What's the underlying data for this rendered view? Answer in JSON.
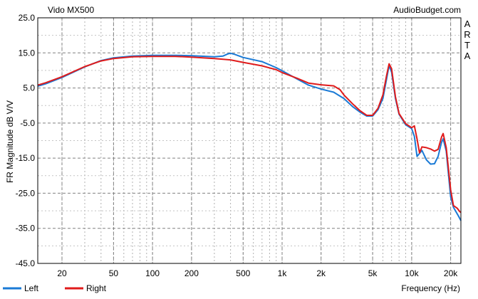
{
  "chart_data": {
    "type": "line",
    "title": "Vido MX500",
    "source_label": "AudioBudget.com",
    "side_label": "ARTA",
    "xlabel": "Frequency (Hz)",
    "ylabel": "FR Magnitude dB V/V",
    "x_scale": "log",
    "xlim": [
      13,
      24000
    ],
    "ylim": [
      -45,
      25
    ],
    "grid": true,
    "legend_position": "bottom-left",
    "y_ticks": [
      {
        "value": 25,
        "label": "25.0"
      },
      {
        "value": 15,
        "label": "15.0"
      },
      {
        "value": 5,
        "label": "5.0"
      },
      {
        "value": -5,
        "label": "-5.0"
      },
      {
        "value": -15,
        "label": "-15.0"
      },
      {
        "value": -25,
        "label": "-25.0"
      },
      {
        "value": -35,
        "label": "-35.0"
      },
      {
        "value": -45,
        "label": "-45.0"
      }
    ],
    "x_ticks": [
      {
        "value": 20,
        "label": "20"
      },
      {
        "value": 50,
        "label": "50"
      },
      {
        "value": 100,
        "label": "100"
      },
      {
        "value": 200,
        "label": "200"
      },
      {
        "value": 500,
        "label": "500"
      },
      {
        "value": 1000,
        "label": "1k"
      },
      {
        "value": 2000,
        "label": "2k"
      },
      {
        "value": 5000,
        "label": "5k"
      },
      {
        "value": 10000,
        "label": "10k"
      },
      {
        "value": 20000,
        "label": "20k"
      }
    ],
    "series": [
      {
        "name": "Left",
        "color": "#1a7ad6",
        "points": [
          [
            13,
            5.5
          ],
          [
            15,
            6.2
          ],
          [
            20,
            8.0
          ],
          [
            30,
            11.0
          ],
          [
            40,
            12.8
          ],
          [
            50,
            13.6
          ],
          [
            70,
            14.1
          ],
          [
            100,
            14.3
          ],
          [
            150,
            14.3
          ],
          [
            200,
            14.2
          ],
          [
            300,
            13.9
          ],
          [
            350,
            14.1
          ],
          [
            380,
            14.7
          ],
          [
            400,
            14.9
          ],
          [
            430,
            14.6
          ],
          [
            500,
            13.7
          ],
          [
            700,
            12.5
          ],
          [
            900,
            10.8
          ],
          [
            1000,
            9.9
          ],
          [
            1300,
            7.6
          ],
          [
            1600,
            5.8
          ],
          [
            2000,
            4.7
          ],
          [
            2500,
            3.8
          ],
          [
            3000,
            2.0
          ],
          [
            3500,
            -0.3
          ],
          [
            4000,
            -1.9
          ],
          [
            4500,
            -3.0
          ],
          [
            5000,
            -3.0
          ],
          [
            5500,
            -1.2
          ],
          [
            6000,
            2.0
          ],
          [
            6400,
            7.5
          ],
          [
            6700,
            11.4
          ],
          [
            7000,
            9.5
          ],
          [
            7500,
            2.0
          ],
          [
            8000,
            -2.5
          ],
          [
            9000,
            -5.5
          ],
          [
            10000,
            -6.6
          ],
          [
            10500,
            -8.8
          ],
          [
            11000,
            -14.5
          ],
          [
            12000,
            -12.8
          ],
          [
            13000,
            -15.5
          ],
          [
            14000,
            -16.7
          ],
          [
            15000,
            -16.6
          ],
          [
            16000,
            -14.5
          ],
          [
            17000,
            -10.5
          ],
          [
            17500,
            -9.5
          ],
          [
            18500,
            -13.0
          ],
          [
            20000,
            -26.0
          ],
          [
            21000,
            -29.0
          ],
          [
            23000,
            -31.5
          ],
          [
            24000,
            -32.8
          ]
        ]
      },
      {
        "name": "Right",
        "color": "#e01b1b",
        "points": [
          [
            13,
            5.8
          ],
          [
            15,
            6.5
          ],
          [
            20,
            8.2
          ],
          [
            30,
            11.1
          ],
          [
            40,
            12.7
          ],
          [
            50,
            13.4
          ],
          [
            70,
            13.9
          ],
          [
            100,
            14.0
          ],
          [
            150,
            14.0
          ],
          [
            200,
            13.8
          ],
          [
            300,
            13.4
          ],
          [
            350,
            13.2
          ],
          [
            400,
            13.0
          ],
          [
            500,
            12.3
          ],
          [
            700,
            11.3
          ],
          [
            900,
            10.2
          ],
          [
            1000,
            9.4
          ],
          [
            1300,
            7.8
          ],
          [
            1600,
            6.4
          ],
          [
            2000,
            5.9
          ],
          [
            2500,
            5.6
          ],
          [
            2800,
            4.5
          ],
          [
            3000,
            3.0
          ],
          [
            3500,
            0.5
          ],
          [
            4000,
            -1.5
          ],
          [
            4500,
            -2.8
          ],
          [
            5000,
            -2.8
          ],
          [
            5500,
            -0.8
          ],
          [
            6000,
            3.0
          ],
          [
            6400,
            8.5
          ],
          [
            6700,
            11.9
          ],
          [
            7000,
            10.5
          ],
          [
            7500,
            2.5
          ],
          [
            8000,
            -2.3
          ],
          [
            9000,
            -5.2
          ],
          [
            10000,
            -6.3
          ],
          [
            10500,
            -5.8
          ],
          [
            11000,
            -9.5
          ],
          [
            11500,
            -13.5
          ],
          [
            12000,
            -11.8
          ],
          [
            13000,
            -12.0
          ],
          [
            14000,
            -12.4
          ],
          [
            15000,
            -13.0
          ],
          [
            16000,
            -12.5
          ],
          [
            17000,
            -9.0
          ],
          [
            17500,
            -8.0
          ],
          [
            18500,
            -12.0
          ],
          [
            20000,
            -24.0
          ],
          [
            21000,
            -28.5
          ],
          [
            22500,
            -29.3
          ],
          [
            23500,
            -30.2
          ],
          [
            24000,
            -30.5
          ]
        ]
      }
    ]
  }
}
